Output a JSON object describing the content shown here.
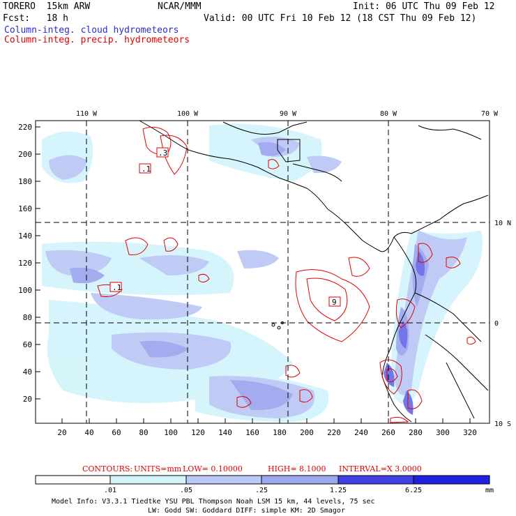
{
  "header": {
    "model": "TORERO  15km ARW",
    "org": "NCAR/MMM",
    "init": "Init: 06 UTC Thu 09 Feb 12",
    "fcst": "Fcst:   18 h",
    "valid": "Valid: 00 UTC Fri 10 Feb 12 (18 CST Thu 09 Feb 12)",
    "field_cloud": "Column-integ. cloud hydrometeors",
    "field_precip": "Column-integ. precip. hydrometeors"
  },
  "map": {
    "lon_labels": [
      "110 W",
      "100 W",
      "90 W",
      "80 W",
      "70 W"
    ],
    "lat_labels": [
      "10 N",
      "0",
      "10 S"
    ],
    "x_ticks": [
      "20",
      "40",
      "60",
      "80",
      "100",
      "120",
      "140",
      "160",
      "180",
      "200",
      "220",
      "240",
      "260",
      "280",
      "300",
      "320"
    ],
    "y_ticks": [
      "220",
      "200",
      "180",
      "160",
      "140",
      "120",
      "100",
      "80",
      "60",
      "40",
      "20"
    ],
    "contour_labels": [
      ".3",
      ".1",
      ".1",
      "9"
    ]
  },
  "contour_info": {
    "contours": "CONTOURS:",
    "units": "UNITS=mm",
    "low": "LOW= 0.10000",
    "high": "HIGH=  8.1000",
    "interval": "INTERVAL=X  3.0000"
  },
  "colorbar": {
    "levels": [
      ".01",
      ".05",
      ".25",
      "1.25",
      "6.25"
    ],
    "unit": "mm",
    "colors": [
      "#ffffff",
      "#d4f4fb",
      "#bcc8f5",
      "#9ea8ef",
      "#6e6ee9",
      "#4242e4",
      "#2020e0"
    ]
  },
  "footer": {
    "line1": "Model Info: V3.3.1    Tiedtke YSU PBL  Thompson    Noah LSM  15 km,   44 levels,   75 sec",
    "line2": "LW: Godd SW: Goddard DIFF: simple KM: 2D Smagor"
  }
}
